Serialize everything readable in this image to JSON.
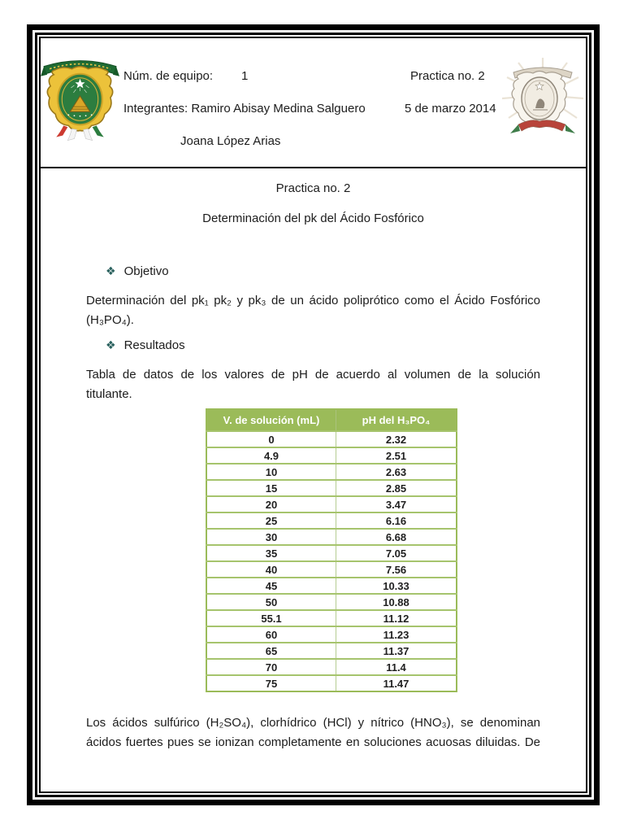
{
  "colors": {
    "frame": "#000000",
    "table_header_bg": "#9bbb59",
    "table_header_text": "#ffffff",
    "table_grid": "#a6c46d",
    "bullet_diamond": "#2a615e"
  },
  "header": {
    "left_logo_icon": "uaemex-crest-color",
    "right_logo_icon": "uaemex-crest-watermark",
    "team_label": "Núm. de equipo:",
    "team_value": "1",
    "practice_no": "Practica no. 2",
    "members": "Integrantes: Ramiro Abisay Medina Salguero",
    "date": "5 de marzo 2014",
    "member2": "Joana López Arias"
  },
  "titles": {
    "line1": "Practica no. 2",
    "line2": "Determinación del pk del Ácido Fosfórico"
  },
  "sections": {
    "bullet_glyph": "❖",
    "objective_label": "Objetivo",
    "results_label": "Resultados"
  },
  "paragraphs": {
    "objective": {
      "lines": [
        "Determinación del pk₁ pk₂ y pk₃ de un ácido poliprótico como el Ácido Fosfórico",
        "(H₃PO₄)."
      ]
    },
    "table_intro": {
      "lines": [
        "Tabla de datos de los valores de pH de acuerdo al volumen de la solución",
        "titulante."
      ]
    },
    "closing": {
      "lines": [
        "Los ácidos sulfúrico (H₂SO₄), clorhídrico (HCl) y nítrico (HNO₃), se denominan",
        "ácidos fuertes pues se ionizan completamente en soluciones acuosas diluidas. De"
      ]
    }
  },
  "table": {
    "headers": [
      "V. de solución (mL)",
      "pH del H₃PO₄"
    ],
    "rows": [
      [
        "0",
        "2.32"
      ],
      [
        "4.9",
        "2.51"
      ],
      [
        "10",
        "2.63"
      ],
      [
        "15",
        "2.85"
      ],
      [
        "20",
        "3.47"
      ],
      [
        "25",
        "6.16"
      ],
      [
        "30",
        "6.68"
      ],
      [
        "35",
        "7.05"
      ],
      [
        "40",
        "7.56"
      ],
      [
        "45",
        "10.33"
      ],
      [
        "50",
        "10.88"
      ],
      [
        "55.1",
        "11.12"
      ],
      [
        "60",
        "11.23"
      ],
      [
        "65",
        "11.37"
      ],
      [
        "70",
        "11.4"
      ],
      [
        "75",
        "11.47"
      ]
    ]
  }
}
